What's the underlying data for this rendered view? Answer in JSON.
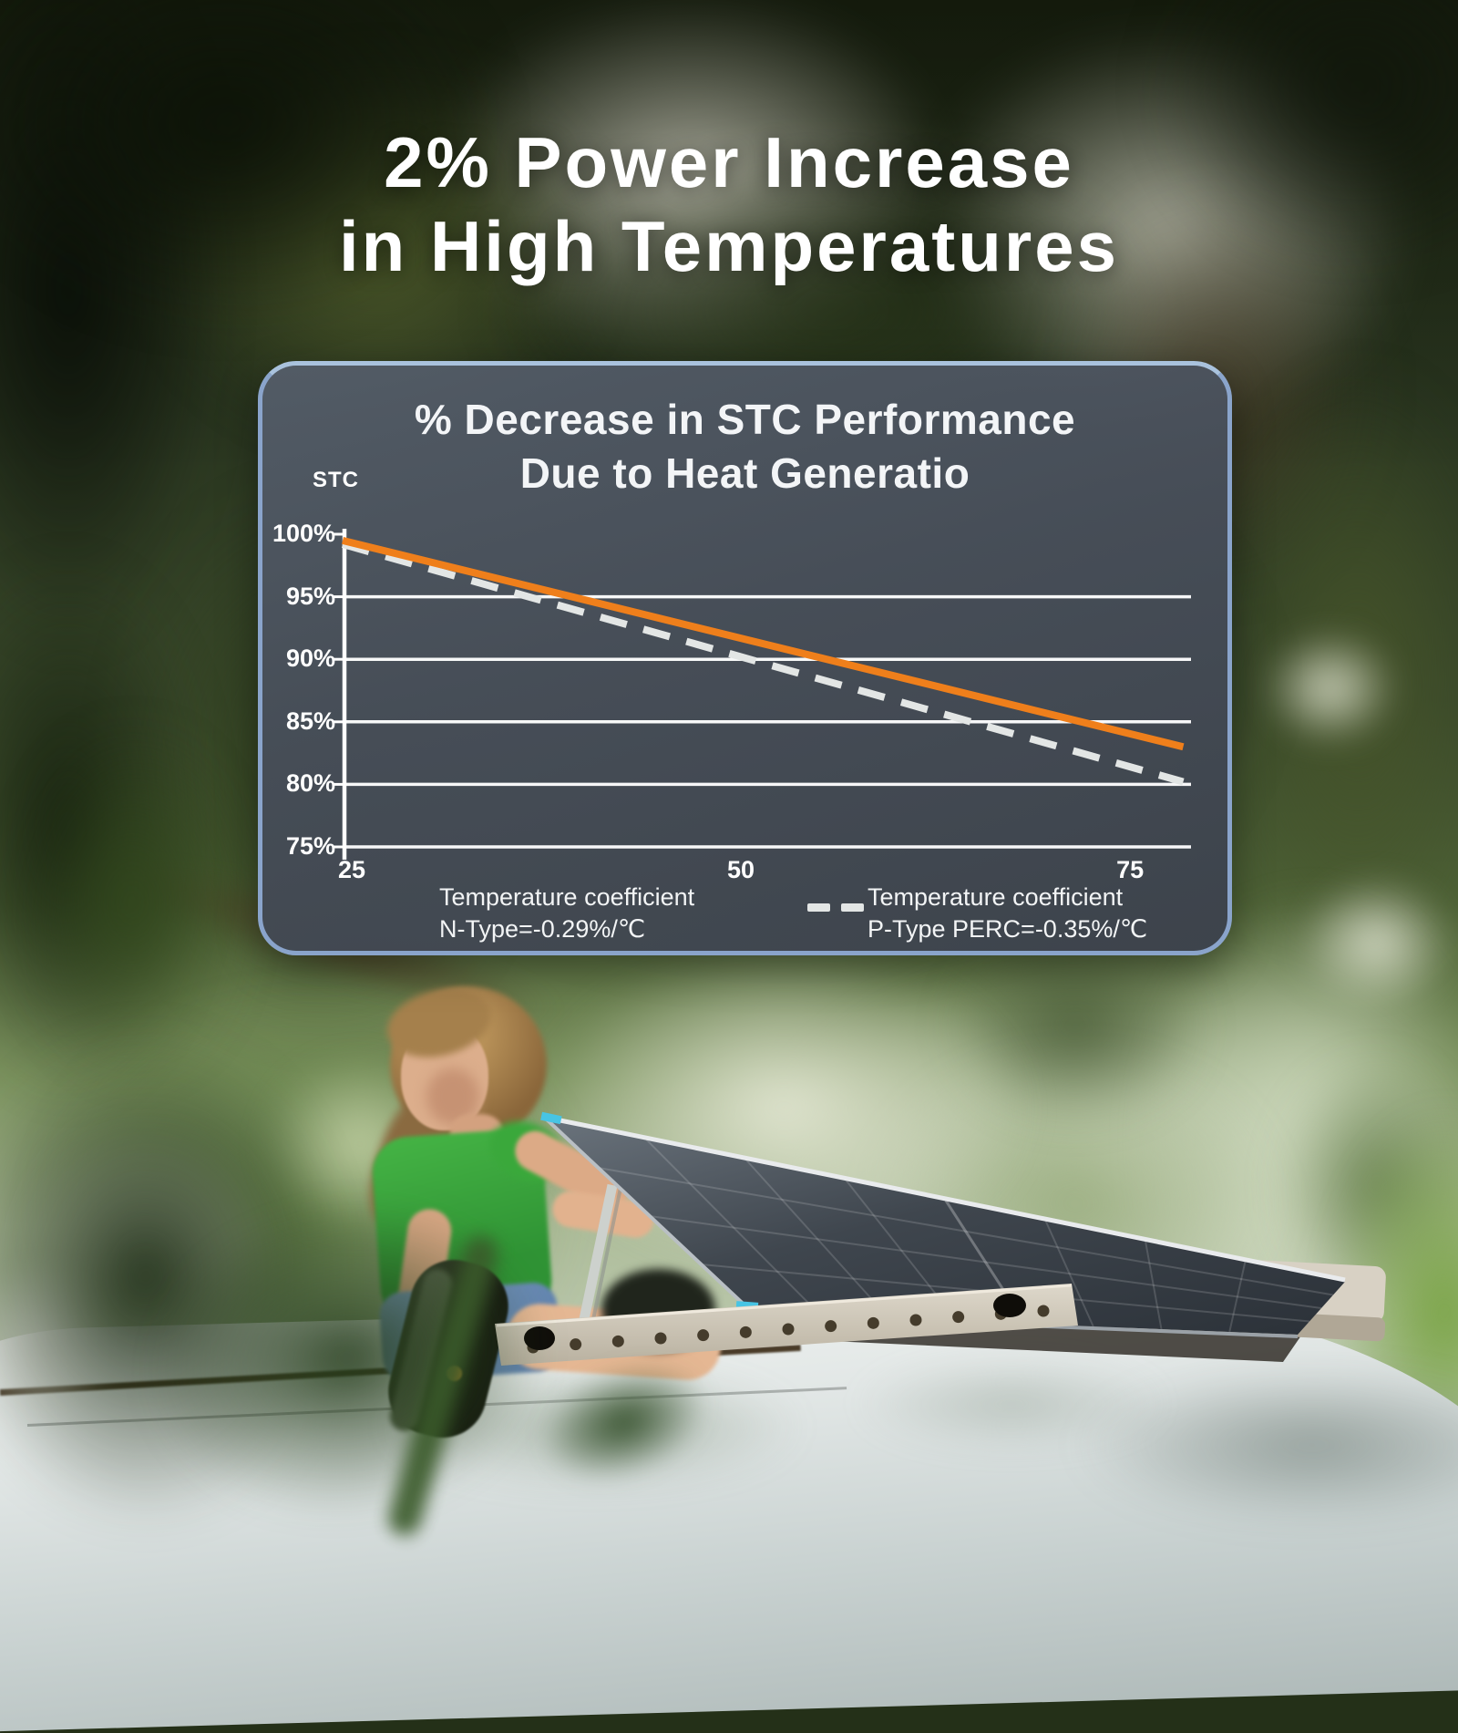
{
  "hero": {
    "title_line1": "2% Power Increase",
    "title_line2": "in High Temperatures"
  },
  "chart": {
    "title_line1": "% Decrease in STC Performance",
    "title_line2": "Due to Heat Generatio",
    "y_axis_title": "STC",
    "legend": [
      {
        "label_line1": "Temperature coefficient",
        "label_line2": "N-Type=-0.29%/℃"
      },
      {
        "label_line1": "Temperature coefficient",
        "label_line2": "P-Type PERC=-0.35%/℃"
      }
    ]
  },
  "chart_data": {
    "type": "line",
    "title": "% Decrease in STC Performance Due to Heat Generatio",
    "x_axis": {
      "min": 25,
      "max": 79.5,
      "ticks": [
        25,
        50,
        75
      ]
    },
    "y_axis": {
      "min": 75,
      "max": 100,
      "ticks": [
        100,
        95,
        90,
        85,
        80,
        75
      ],
      "tick_suffix": "%",
      "label": "STC"
    },
    "grid": "horizontal-only",
    "legend_position": "bottom",
    "series": [
      {
        "name": "Temperature coefficient N-Type=-0.29%/℃",
        "coefficient_per_celsius": -0.29,
        "line_style": "solid",
        "color": "#EF7F1B",
        "points": [
          [
            25,
            99.5
          ],
          [
            79,
            83.0
          ]
        ]
      },
      {
        "name": "Temperature coefficient P-Type PERC=-0.35%/℃",
        "coefficient_per_celsius": -0.35,
        "line_style": "dashed",
        "color": "#E3E6E5",
        "points": [
          [
            25,
            99.2
          ],
          [
            79,
            80.2
          ]
        ]
      }
    ]
  },
  "colors": {
    "accent_orange": "#EF7F1B",
    "dashed_gray": "#E3E6E5",
    "panel_border": "#8AA4CB",
    "panel_background": "#4C545E",
    "grid_line": "#FFFFFF",
    "title_text": "#FFFFFF"
  }
}
